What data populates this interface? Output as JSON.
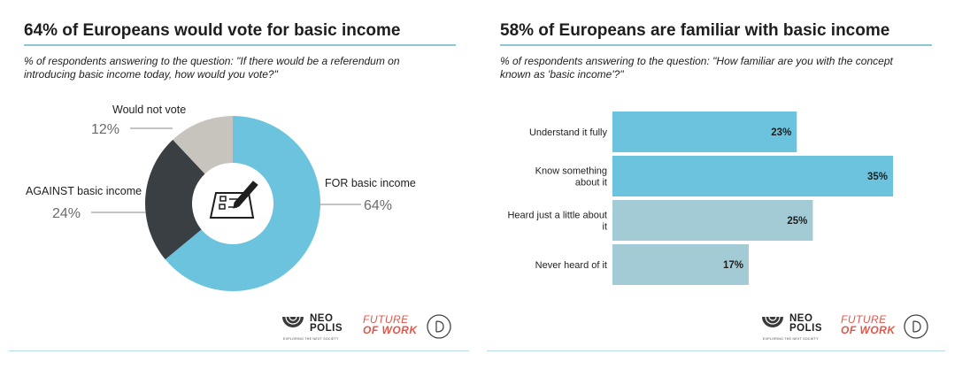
{
  "panels": {
    "left": {
      "title": "64% of Europeans would vote for basic income",
      "subtitle": "% of respondents answering to the question: \"If there would be a referendum on introducing basic income today, how would you vote?\""
    },
    "right": {
      "title": "58% of Europeans are familiar with basic income",
      "subtitle": "% of respondents answering to the question: \"How familiar are you with the concept known as 'basic income'?\""
    }
  },
  "logos": {
    "neo_line1": "NEO",
    "neo_line2": "POLIS",
    "neo_tagline": "EXPLORING THE NEXT SOCIETY",
    "fow_line1": "FUTURE",
    "fow_line2": "OF WORK"
  },
  "chart_data": [
    {
      "type": "pie",
      "style": "donut",
      "title": "64% of Europeans would vote for basic income",
      "slices": [
        {
          "label": "FOR basic income",
          "value": 64,
          "display": "64%",
          "color": "#6cc3dd"
        },
        {
          "label": "AGAINST basic income",
          "value": 24,
          "display": "24%",
          "color": "#3a3f44"
        },
        {
          "label": "Would not vote",
          "value": 12,
          "display": "12%",
          "color": "#c7c4bd"
        }
      ],
      "center_icon": "ballot-checklist-icon"
    },
    {
      "type": "bar",
      "orientation": "horizontal",
      "title": "58% of Europeans are familiar with basic income",
      "categories": [
        "Understand it fully",
        "Know something about it",
        "Heard just a little about it",
        "Never heard of it"
      ],
      "values": [
        23,
        35,
        25,
        17
      ],
      "value_labels": [
        "23%",
        "35%",
        "25%",
        "17%"
      ],
      "colors": [
        "#6cc3dd",
        "#6cc3dd",
        "#a3cbd6",
        "#a3cbd6"
      ],
      "xlim": [
        0,
        35
      ],
      "grid": false
    }
  ]
}
